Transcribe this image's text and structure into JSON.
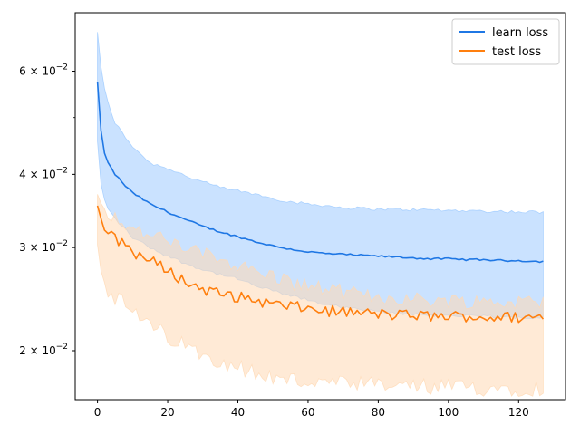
{
  "chart_data": {
    "type": "line",
    "title": "",
    "xlabel": "",
    "ylabel": "",
    "xlim": [
      -6.35,
      133.35
    ],
    "ylim": [
      0.0165,
      0.0755
    ],
    "yscale": "log",
    "grid": false,
    "legend_position": "top-right",
    "x_ticks": [
      0,
      20,
      40,
      60,
      80,
      100,
      120
    ],
    "x_tick_labels": [
      "0",
      "20",
      "40",
      "60",
      "80",
      "100",
      "120"
    ],
    "y_ticks": [
      {
        "value": 0.02,
        "mantissa": "2",
        "base": "10",
        "exp": "−2"
      },
      {
        "value": 0.03,
        "mantissa": "3",
        "base": "10",
        "exp": "−2"
      },
      {
        "value": 0.04,
        "mantissa": "4",
        "base": "10",
        "exp": "−2"
      },
      {
        "value": 0.06,
        "mantissa": "6",
        "base": "10",
        "exp": "−2"
      }
    ],
    "y_minor_ticks": [
      0.05
    ],
    "keypoints_x": [
      0,
      1,
      2,
      3,
      5,
      8,
      10,
      15,
      20,
      25,
      30,
      35,
      40,
      45,
      50,
      55,
      60,
      65,
      70,
      75,
      80,
      85,
      90,
      95,
      100,
      105,
      110,
      115,
      120,
      125,
      127
    ],
    "series": [
      {
        "name": "learn loss",
        "color": "#1f77e4",
        "band_color": "#9ecbff",
        "mean": [
          0.0575,
          0.0475,
          0.0435,
          0.0418,
          0.04,
          0.0382,
          0.0372,
          0.0356,
          0.0345,
          0.0335,
          0.0326,
          0.0319,
          0.0313,
          0.0307,
          0.0302,
          0.0298,
          0.0295,
          0.0293,
          0.0292,
          0.0291,
          0.029,
          0.0289,
          0.0288,
          0.0287,
          0.0287,
          0.0286,
          0.0286,
          0.0285,
          0.0285,
          0.0284,
          0.0284
        ],
        "upper": [
          0.07,
          0.061,
          0.056,
          0.053,
          0.049,
          0.0462,
          0.0447,
          0.0418,
          0.041,
          0.0398,
          0.0388,
          0.038,
          0.0375,
          0.037,
          0.0364,
          0.0359,
          0.0356,
          0.0354,
          0.0351,
          0.035,
          0.0349,
          0.0349,
          0.0348,
          0.0348,
          0.0347,
          0.0347,
          0.0346,
          0.0346,
          0.0345,
          0.0345,
          0.0344
        ],
        "lower": [
          0.0455,
          0.0385,
          0.0362,
          0.035,
          0.0336,
          0.0322,
          0.0312,
          0.03,
          0.029,
          0.0282,
          0.0275,
          0.027,
          0.0265,
          0.0258,
          0.0253,
          0.0248,
          0.0244,
          0.024,
          0.0237,
          0.0235,
          0.0233,
          0.0232,
          0.0231,
          0.023,
          0.023,
          0.0229,
          0.0229,
          0.0228,
          0.0228,
          0.0228,
          0.0228
        ]
      },
      {
        "name": "test loss",
        "color": "#ff7f0e",
        "band_color": "#ffd9b5",
        "mean": [
          0.0355,
          0.0335,
          0.0322,
          0.0318,
          0.031,
          0.0305,
          0.0295,
          0.0285,
          0.0275,
          0.0262,
          0.0255,
          0.025,
          0.0247,
          0.0244,
          0.024,
          0.0238,
          0.0236,
          0.0234,
          0.0233,
          0.0232,
          0.0231,
          0.023,
          0.023,
          0.0229,
          0.0229,
          0.0229,
          0.0228,
          0.0228,
          0.0228,
          0.0228,
          0.0228
        ],
        "upper": [
          0.037,
          0.036,
          0.035,
          0.0345,
          0.0338,
          0.033,
          0.0322,
          0.0315,
          0.0307,
          0.03,
          0.0292,
          0.0288,
          0.028,
          0.0273,
          0.0268,
          0.0262,
          0.0258,
          0.0255,
          0.0252,
          0.0249,
          0.0247,
          0.0246,
          0.0245,
          0.0244,
          0.0244,
          0.0243,
          0.0243,
          0.0242,
          0.0242,
          0.0242,
          0.0242
        ],
        "lower": [
          0.0305,
          0.0275,
          0.0262,
          0.0255,
          0.0245,
          0.024,
          0.0232,
          0.022,
          0.0212,
          0.0203,
          0.0198,
          0.0193,
          0.0188,
          0.0183,
          0.018,
          0.0178,
          0.0177,
          0.0176,
          0.0175,
          0.0175,
          0.0174,
          0.0174,
          0.0174,
          0.0173,
          0.0173,
          0.0173,
          0.0173,
          0.0173,
          0.0173,
          0.0173,
          0.0173
        ]
      }
    ]
  }
}
